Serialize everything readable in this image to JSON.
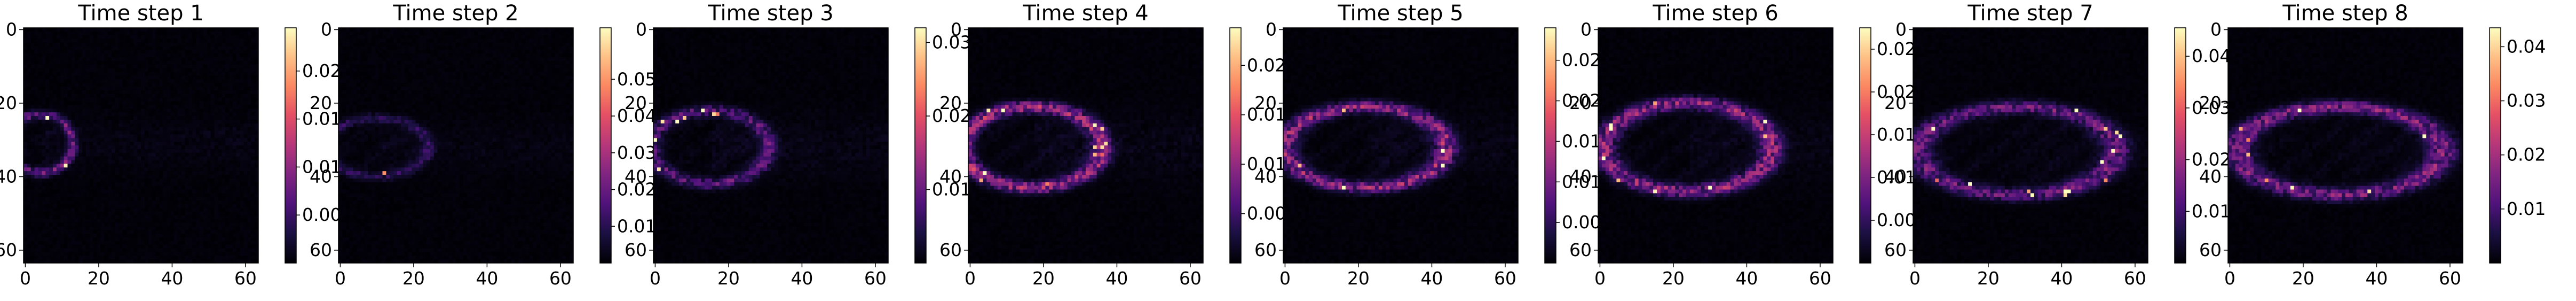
{
  "chart_data": [
    {
      "type": "heatmap",
      "title": "Time step 1",
      "xlim": [
        0,
        63
      ],
      "ylim": [
        63,
        0
      ],
      "xticks": [
        "0",
        "20",
        "40",
        "60"
      ],
      "yticks": [
        "0",
        "20",
        "40",
        "60"
      ],
      "colormap": "magma",
      "colorbar": {
        "min": 0,
        "max": 0.0245,
        "ticks": [
          0.005,
          0.01,
          0.015,
          0.02
        ],
        "tick_labels": [
          "0.005",
          "0.010",
          "0.015",
          "0.020"
        ]
      },
      "structure": {
        "cx": 4,
        "cy": 31,
        "rx": 9,
        "ry": 8,
        "tail": 0.35,
        "rim_intensity": 0.35
      }
    },
    {
      "type": "heatmap",
      "title": "Time step 2",
      "xlim": [
        0,
        63
      ],
      "ylim": [
        63,
        0
      ],
      "xticks": [
        "0",
        "20",
        "40",
        "60"
      ],
      "yticks": [
        "0",
        "20",
        "40",
        "60"
      ],
      "colormap": "magma",
      "colorbar": {
        "min": 0,
        "max": 0.064,
        "ticks": [
          0.01,
          0.02,
          0.03,
          0.04,
          0.05
        ],
        "tick_labels": [
          "0.01",
          "0.02",
          "0.03",
          "0.04",
          "0.05"
        ]
      },
      "structure": {
        "cx": 10,
        "cy": 32,
        "rx": 14,
        "ry": 8,
        "tail": 0.3,
        "rim_intensity": 0.18
      }
    },
    {
      "type": "heatmap",
      "title": "Time step 3",
      "xlim": [
        0,
        63
      ],
      "ylim": [
        63,
        0
      ],
      "xticks": [
        "0",
        "20",
        "40",
        "60"
      ],
      "yticks": [
        "0",
        "20",
        "40",
        "60"
      ],
      "colormap": "magma",
      "colorbar": {
        "min": 0,
        "max": 0.032,
        "ticks": [
          0.01,
          0.02,
          0.03
        ],
        "tick_labels": [
          "0.01",
          "0.02",
          "0.03"
        ]
      },
      "structure": {
        "cx": 15,
        "cy": 32,
        "rx": 16,
        "ry": 10,
        "tail": 0.45,
        "rim_intensity": 0.3
      }
    },
    {
      "type": "heatmap",
      "title": "Time step 4",
      "xlim": [
        0,
        63
      ],
      "ylim": [
        63,
        0
      ],
      "xticks": [
        "0",
        "20",
        "40",
        "60"
      ],
      "yticks": [
        "0",
        "20",
        "40",
        "60"
      ],
      "colormap": "magma",
      "colorbar": {
        "min": 0,
        "max": 0.0238,
        "ticks": [
          0.005,
          0.01,
          0.015,
          0.02
        ],
        "tick_labels": [
          "0.005",
          "0.010",
          "0.015",
          "0.020"
        ]
      },
      "structure": {
        "cx": 17,
        "cy": 32,
        "rx": 19,
        "ry": 11,
        "tail": 0.45,
        "rim_intensity": 0.5
      }
    },
    {
      "type": "heatmap",
      "title": "Time step 5",
      "xlim": [
        0,
        63
      ],
      "ylim": [
        63,
        0
      ],
      "xticks": [
        "0",
        "20",
        "40",
        "60"
      ],
      "yticks": [
        "0",
        "20",
        "40",
        "60"
      ],
      "colormap": "magma",
      "colorbar": {
        "min": 0,
        "max": 0.029,
        "ticks": [
          0.005,
          0.01,
          0.015,
          0.02,
          0.025
        ],
        "tick_labels": [
          "0.005",
          "0.010",
          "0.015",
          "0.020",
          "0.025"
        ]
      },
      "structure": {
        "cx": 22,
        "cy": 32,
        "rx": 22,
        "ry": 11,
        "tail": 0.4,
        "rim_intensity": 0.45
      }
    },
    {
      "type": "heatmap",
      "title": "Time step 6",
      "xlim": [
        0,
        63
      ],
      "ylim": [
        63,
        0
      ],
      "xticks": [
        "0",
        "20",
        "40",
        "60"
      ],
      "yticks": [
        "0",
        "20",
        "40",
        "60"
      ],
      "colormap": "magma",
      "colorbar": {
        "min": 0,
        "max": 0.0275,
        "ticks": [
          0.005,
          0.01,
          0.015,
          0.02,
          0.025
        ],
        "tick_labels": [
          "0.005",
          "0.010",
          "0.015",
          "0.020",
          "0.025"
        ]
      },
      "structure": {
        "cx": 24,
        "cy": 32,
        "rx": 23,
        "ry": 12,
        "tail": 0.35,
        "rim_intensity": 0.45
      }
    },
    {
      "type": "heatmap",
      "title": "Time step 7",
      "xlim": [
        0,
        63
      ],
      "ylim": [
        63,
        0
      ],
      "xticks": [
        "0",
        "20",
        "40",
        "60"
      ],
      "yticks": [
        "0",
        "20",
        "40",
        "60"
      ],
      "colormap": "magma",
      "colorbar": {
        "min": 0,
        "max": 0.0455,
        "ticks": [
          0.01,
          0.02,
          0.03,
          0.04
        ],
        "tick_labels": [
          "0.01",
          "0.02",
          "0.03",
          "0.04"
        ]
      },
      "structure": {
        "cx": 28,
        "cy": 33,
        "rx": 27,
        "ry": 12,
        "tail": 0.2,
        "rim_intensity": 0.35
      }
    },
    {
      "type": "heatmap",
      "title": "Time step 8",
      "xlim": [
        0,
        63
      ],
      "ylim": [
        63,
        0
      ],
      "xticks": [
        "0",
        "20",
        "40",
        "60"
      ],
      "yticks": [
        "0",
        "20",
        "40",
        "60"
      ],
      "colormap": "magma",
      "colorbar": {
        "min": 0,
        "max": 0.0435,
        "ticks": [
          0.01,
          0.02,
          0.03,
          0.04
        ],
        "tick_labels": [
          "0.01",
          "0.02",
          "0.03",
          "0.04"
        ]
      },
      "structure": {
        "cx": 30,
        "cy": 33,
        "rx": 28,
        "ry": 12,
        "tail": 0.15,
        "rim_intensity": 0.4
      }
    }
  ]
}
